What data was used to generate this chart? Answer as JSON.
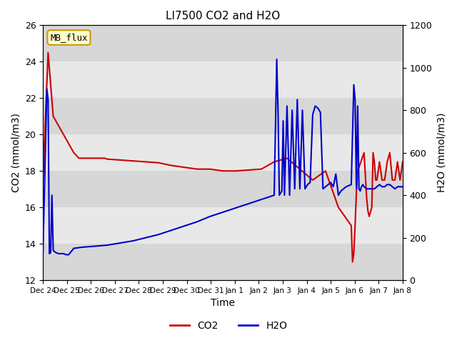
{
  "title": "LI7500 CO2 and H2O",
  "xlabel": "Time",
  "ylabel_left": "CO2 (mmol/m3)",
  "ylabel_right": "H2O (mmol/m3)",
  "ylim_left": [
    12,
    26
  ],
  "ylim_right": [
    0,
    1200
  ],
  "mb_flux_label": "MB_flux",
  "legend_labels": [
    "CO2",
    "H2O"
  ],
  "co2_color": "#cc0000",
  "h2o_color": "#0000cc",
  "background_color": "#ffffff",
  "plot_bg_color": "#e8e8e8",
  "band_color": "#d0d0d0",
  "co2_linewidth": 1.5,
  "h2o_linewidth": 1.5,
  "tick_dates": [
    "Dec 24",
    "Dec 25",
    "Dec 26",
    "Dec 27",
    "Dec 28",
    "Dec 29",
    "Dec 30",
    "Dec 31",
    "Jan 1",
    "Jan 2",
    "Jan 3",
    "Jan 4",
    "Jan 5",
    "Jan 6",
    "Jan 7",
    "Jan 8"
  ],
  "co2_x": [
    0,
    0.2,
    0.4,
    0.6,
    0.8,
    1.0,
    1.2,
    1.4,
    1.6,
    1.8,
    2.0,
    2.1,
    2.15,
    2.2,
    2.3,
    2.4,
    2.5,
    3.0,
    3.5,
    4.0,
    4.5,
    5.0,
    5.5,
    6.0,
    6.5,
    7.0,
    7.5,
    8.0,
    8.5,
    9.0,
    9.5,
    10.0,
    10.5,
    11.0,
    11.5,
    12.0,
    12.05,
    12.1,
    12.15,
    12.2,
    12.25,
    12.5,
    12.6,
    12.65,
    12.7,
    12.8,
    12.85,
    12.9,
    12.95,
    13.0,
    13.1,
    13.2,
    13.3,
    13.4,
    13.5,
    13.6,
    13.7,
    13.8,
    13.9,
    14.0
  ],
  "co2_y": [
    17.5,
    24.5,
    21.0,
    20.5,
    20.0,
    19.5,
    19.0,
    18.7,
    18.7,
    18.7,
    18.7,
    18.7,
    18.7,
    18.7,
    18.7,
    18.7,
    18.65,
    18.6,
    18.55,
    18.5,
    18.45,
    18.3,
    18.2,
    18.1,
    18.1,
    18.0,
    18.0,
    18.05,
    18.1,
    18.5,
    18.7,
    18.1,
    17.5,
    18.0,
    16.0,
    15.0,
    13.0,
    13.5,
    15.0,
    16.8,
    18.0,
    19.0,
    16.5,
    15.8,
    15.5,
    16.0,
    19.0,
    18.5,
    17.5,
    17.5,
    18.5,
    17.5,
    17.5,
    18.5,
    19.0,
    17.5,
    17.5,
    18.5,
    17.5,
    18.5
  ],
  "h2o_x": [
    0,
    0.15,
    0.2,
    0.25,
    0.3,
    0.35,
    0.4,
    0.5,
    0.6,
    0.7,
    0.8,
    0.9,
    1.0,
    1.2,
    1.5,
    2.0,
    2.5,
    3.0,
    3.5,
    4.0,
    4.5,
    5.0,
    5.5,
    6.0,
    6.5,
    7.0,
    7.5,
    8.0,
    8.5,
    9.0,
    9.1,
    9.15,
    9.2,
    9.3,
    9.35,
    9.4,
    9.5,
    9.6,
    9.7,
    9.8,
    9.9,
    10.0,
    10.1,
    10.2,
    10.3,
    10.4,
    10.5,
    10.6,
    10.7,
    10.8,
    10.9,
    11.0,
    11.1,
    11.2,
    11.3,
    11.4,
    11.5,
    11.6,
    11.7,
    11.8,
    12.0,
    12.1,
    12.15,
    12.2,
    12.25,
    12.3,
    12.35,
    12.4,
    12.45,
    12.5,
    12.6,
    12.7,
    12.8,
    12.9,
    13.0,
    13.1,
    13.2,
    13.3,
    13.4,
    13.5,
    13.6,
    13.7,
    13.8,
    13.9,
    14.0
  ],
  "h2o_y": [
    125,
    900,
    850,
    125,
    130,
    400,
    140,
    130,
    125,
    125,
    125,
    120,
    120,
    150,
    155,
    160,
    165,
    175,
    185,
    200,
    215,
    235,
    255,
    275,
    300,
    320,
    340,
    360,
    380,
    400,
    1040,
    800,
    400,
    420,
    750,
    400,
    820,
    400,
    800,
    430,
    850,
    430,
    800,
    430,
    450,
    460,
    780,
    820,
    810,
    790,
    430,
    440,
    450,
    460,
    440,
    500,
    400,
    420,
    430,
    440,
    450,
    920,
    850,
    430,
    820,
    430,
    420,
    440,
    450,
    440,
    430,
    430,
    430,
    430,
    440,
    450,
    440,
    440,
    450,
    450,
    440,
    430,
    440,
    440,
    440
  ]
}
